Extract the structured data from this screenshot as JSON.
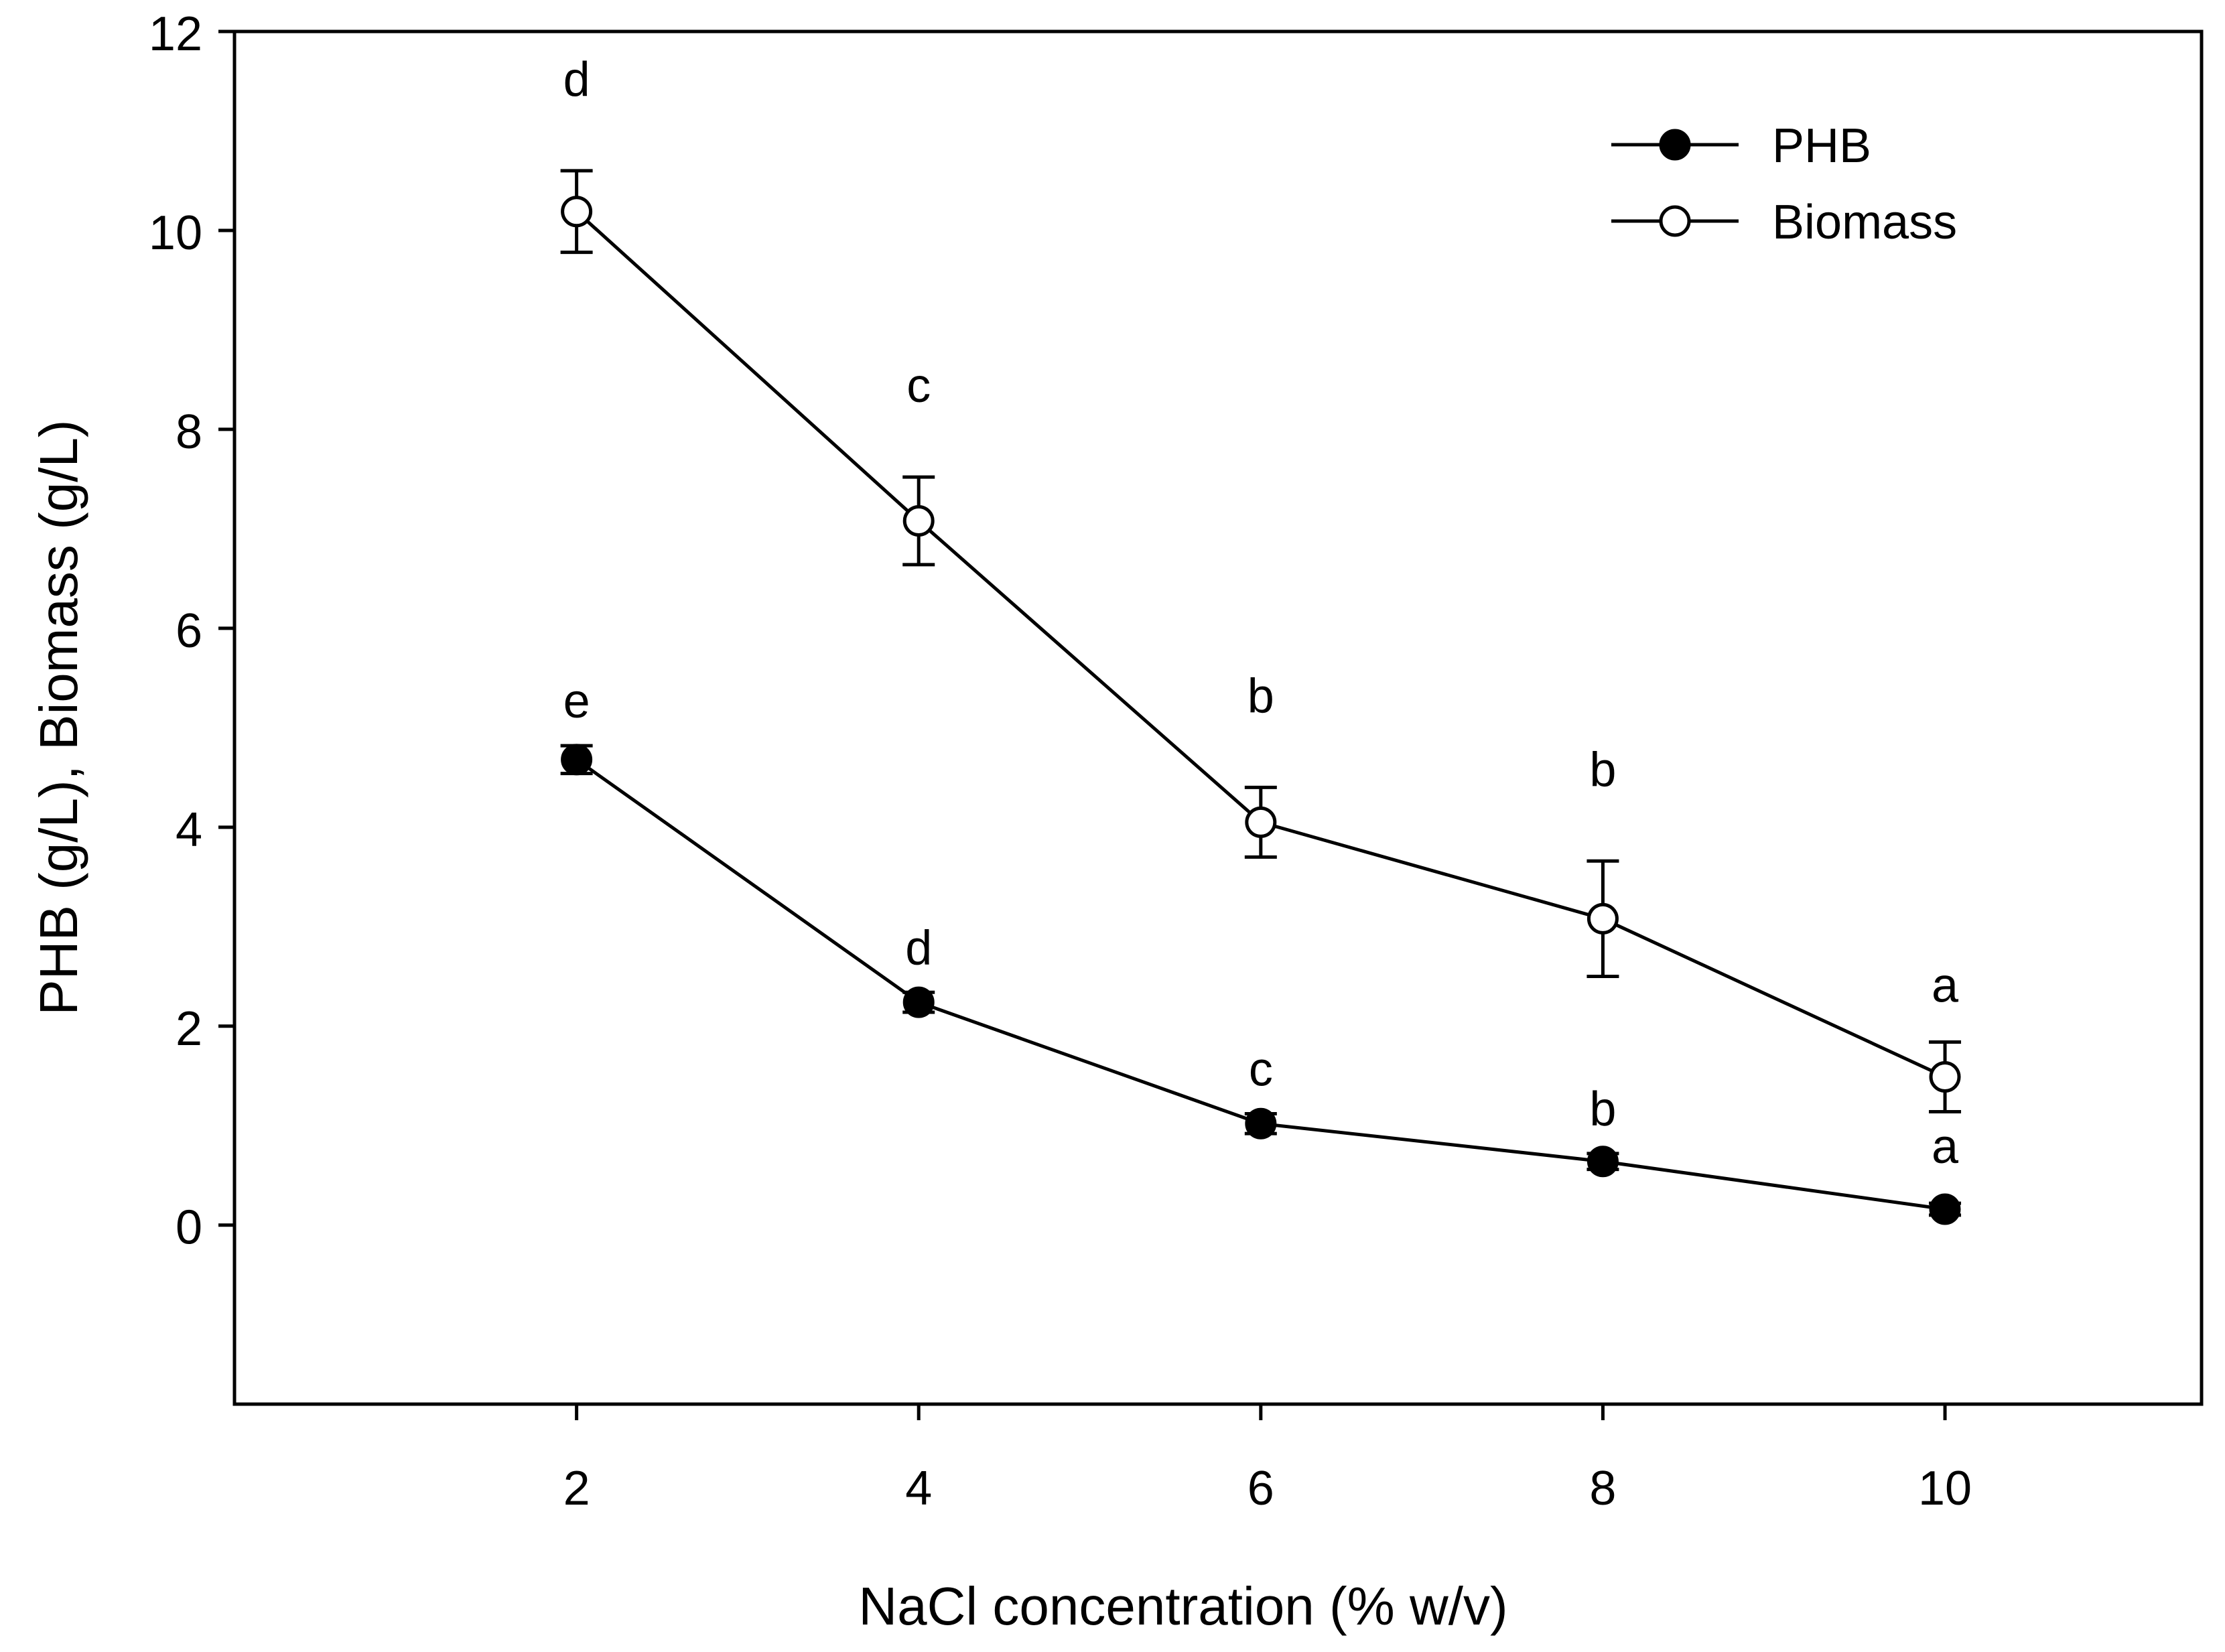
{
  "chart_data": {
    "type": "line",
    "xlabel": "NaCl concentration (% w/v)",
    "ylabel": "PHB (g/L), Biomass (g/L)",
    "xlim": [
      0,
      11.5
    ],
    "ylim": [
      -1.8,
      12
    ],
    "x": [
      2,
      4,
      6,
      8,
      10
    ],
    "x_ticks": [
      2,
      4,
      6,
      8,
      10
    ],
    "y_ticks": [
      0,
      2,
      4,
      6,
      8,
      10,
      12
    ],
    "legend_position": "top-right",
    "grid": false,
    "series": [
      {
        "name": "PHB",
        "marker": "filled-circle",
        "color": "#000000",
        "values": [
          4.68,
          2.24,
          1.02,
          0.64,
          0.16
        ],
        "errors": [
          0.14,
          0.1,
          0.1,
          0.08,
          0.06
        ],
        "labels": [
          "e",
          "d",
          "c",
          "b",
          "a"
        ]
      },
      {
        "name": "Biomass",
        "marker": "open-circle",
        "color": "#000000",
        "values": [
          10.19,
          7.08,
          4.05,
          3.08,
          1.49
        ],
        "errors": [
          0.41,
          0.44,
          0.35,
          0.58,
          0.35
        ],
        "labels": [
          "d",
          "c",
          "b",
          "b",
          "a"
        ]
      }
    ]
  }
}
